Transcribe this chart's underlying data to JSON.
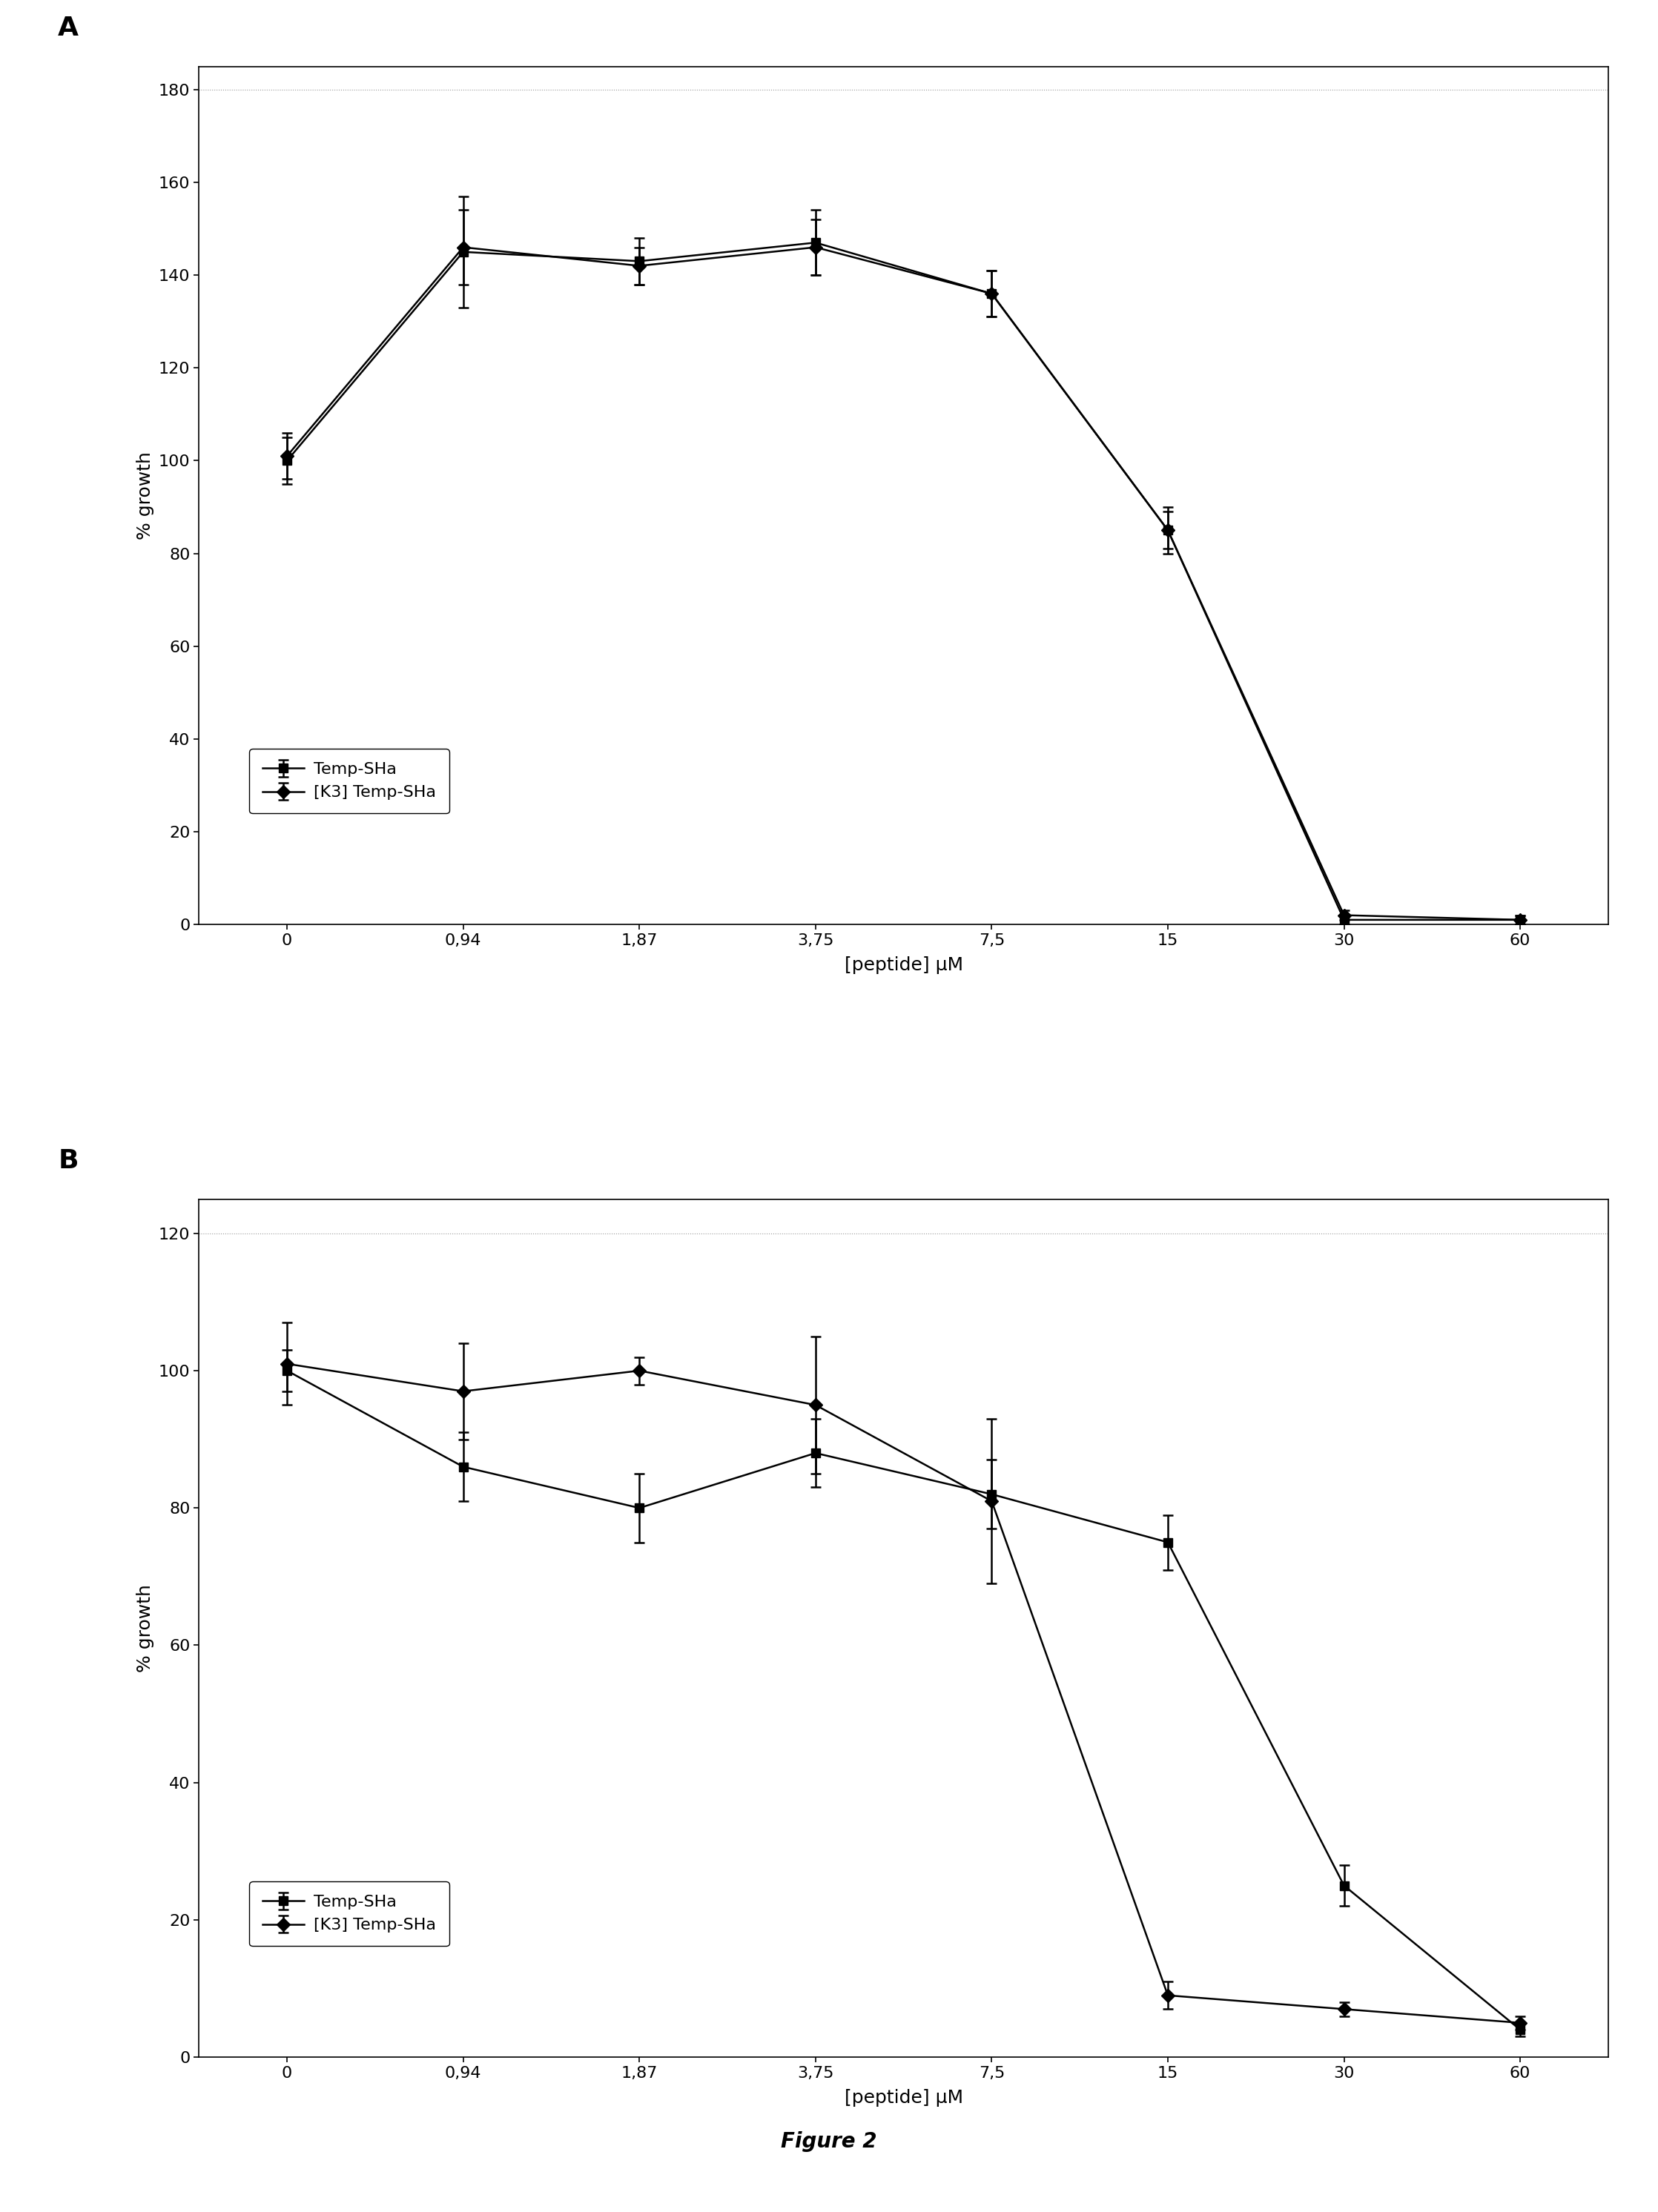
{
  "x_labels": [
    "0",
    "0,94",
    "1,87",
    "3,75",
    "7,5",
    "15",
    "30",
    "60"
  ],
  "x_positions": [
    0,
    1,
    2,
    3,
    4,
    5,
    6,
    7
  ],
  "panel_A": {
    "label": "A",
    "sha_y": [
      100,
      145,
      143,
      147,
      136,
      85,
      1,
      1
    ],
    "sha_yerr": [
      5,
      12,
      5,
      7,
      5,
      5,
      1,
      1
    ],
    "k3_y": [
      101,
      146,
      142,
      146,
      136,
      85,
      2,
      1
    ],
    "k3_yerr": [
      5,
      8,
      4,
      6,
      5,
      4,
      1,
      1
    ],
    "ylim": [
      0,
      185
    ],
    "yticks": [
      0,
      20,
      40,
      60,
      80,
      100,
      120,
      140,
      160,
      180
    ],
    "ylabel": "% growth",
    "xlabel": "[peptide] μM"
  },
  "panel_B": {
    "label": "B",
    "sha_y": [
      100,
      86,
      80,
      88,
      82,
      75,
      25,
      4
    ],
    "sha_yerr": [
      3,
      5,
      5,
      5,
      5,
      4,
      3,
      1
    ],
    "k3_y": [
      101,
      97,
      100,
      95,
      81,
      9,
      7,
      5
    ],
    "k3_yerr": [
      6,
      7,
      2,
      10,
      12,
      2,
      1,
      1
    ],
    "ylim": [
      0,
      125
    ],
    "yticks": [
      0,
      20,
      40,
      60,
      80,
      100,
      120
    ],
    "ylabel": "% growth",
    "xlabel": "[peptide] μM"
  },
  "legend_sha_label": "Temp-SHa",
  "legend_k3_label": "[K3] Temp-SHa",
  "sha_marker": "s",
  "k3_marker": "D",
  "line_color": "#000000",
  "figure_label": "Figure 2",
  "figure_label_fontsize": 20,
  "panel_label_fontsize": 26,
  "axis_label_fontsize": 18,
  "tick_label_fontsize": 16,
  "legend_fontsize": 16,
  "background_color": "#ffffff"
}
